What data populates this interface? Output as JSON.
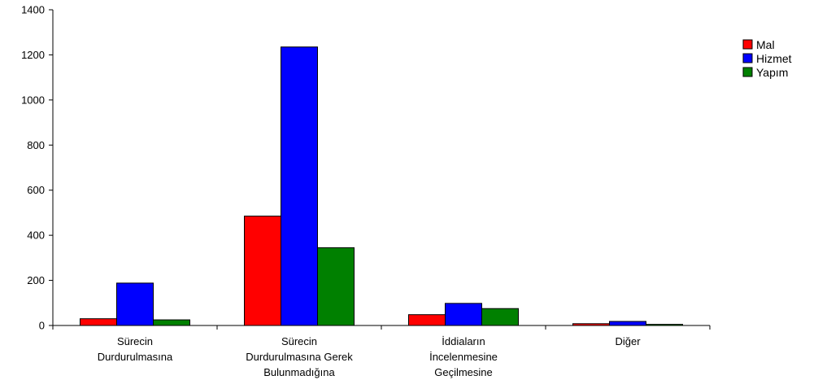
{
  "chart_data": {
    "type": "bar",
    "title": "",
    "xlabel": "",
    "ylabel": "",
    "ylim": [
      0,
      1400
    ],
    "yticks": [
      0,
      200,
      400,
      600,
      800,
      1000,
      1200,
      1400
    ],
    "grid": false,
    "legend_position": "right",
    "categories": [
      [
        "Sürecin",
        "Durdurulmasına"
      ],
      [
        "Sürecin",
        "Durdurulmasına Gerek",
        "Bulunmadığına"
      ],
      [
        "İddiaların",
        "İncelenmesine",
        "Geçilmesine"
      ],
      [
        "Diğer"
      ]
    ],
    "series": [
      {
        "name": "Mal",
        "color": "#ff0000",
        "values": [
          30,
          485,
          48,
          8
        ]
      },
      {
        "name": "Hizmet",
        "color": "#0000ff",
        "values": [
          188,
          1235,
          98,
          18
        ]
      },
      {
        "name": "Yapım",
        "color": "#008000",
        "values": [
          25,
          345,
          75,
          5
        ]
      }
    ]
  }
}
